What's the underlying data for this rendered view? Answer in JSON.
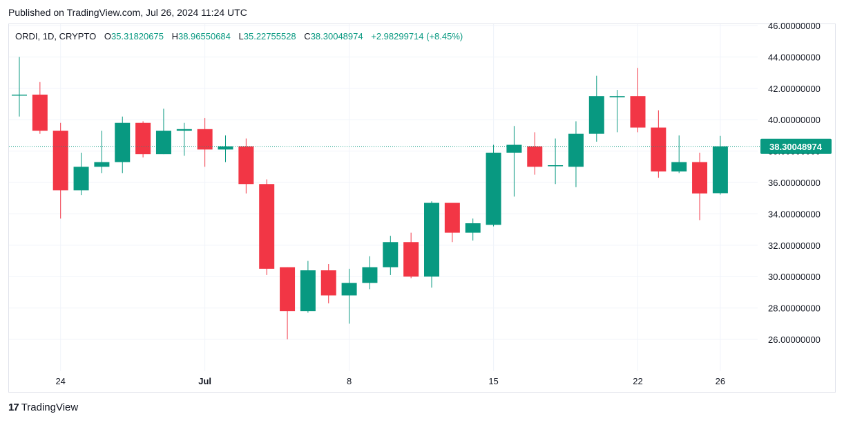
{
  "header": {
    "published": "Published on TradingView.com, Jul 26, 2024 11:24 UTC"
  },
  "legend": {
    "symbol": "ORDI, 1D, CRYPTO",
    "open_key": "O",
    "open": "35.31820675",
    "high_key": "H",
    "high": "38.96550684",
    "low_key": "L",
    "low": "35.22755528",
    "close_key": "C",
    "close": "38.30048974",
    "change": "+2.98299714 (+8.45%)"
  },
  "footer": {
    "brand": "TradingView",
    "logo": "17"
  },
  "colors": {
    "up": "#089981",
    "down": "#f23645",
    "grid": "#f0f3fa",
    "text": "#131722"
  },
  "chart_data": {
    "type": "candlestick",
    "title": "ORDI, 1D, CRYPTO",
    "ylim": [
      24.5,
      46.0
    ],
    "yticks": [
      26,
      28,
      30,
      32,
      34,
      36,
      38,
      40,
      42,
      44,
      46
    ],
    "ytick_labels": [
      "26.00000000",
      "28.00000000",
      "30.00000000",
      "32.00000000",
      "34.00000000",
      "36.00000000",
      "38.00000000",
      "40.00000000",
      "42.00000000",
      "44.00000000",
      "46.00000000"
    ],
    "xticks": [
      {
        "label": "24",
        "index": 2
      },
      {
        "label": "Jul",
        "index": 9
      },
      {
        "label": "8",
        "index": 16
      },
      {
        "label": "15",
        "index": 23
      },
      {
        "label": "22",
        "index": 30
      },
      {
        "label": "26",
        "index": 34
      }
    ],
    "last_price": 38.30048974,
    "last_price_label": "38.30048974",
    "candles": [
      {
        "o": 41.6,
        "h": 44.0,
        "l": 40.2,
        "c": 41.6
      },
      {
        "o": 41.6,
        "h": 42.4,
        "l": 39.1,
        "c": 39.3
      },
      {
        "o": 39.3,
        "h": 39.8,
        "l": 33.7,
        "c": 35.5
      },
      {
        "o": 35.5,
        "h": 37.9,
        "l": 35.2,
        "c": 37.0
      },
      {
        "o": 37.0,
        "h": 39.3,
        "l": 36.6,
        "c": 37.3
      },
      {
        "o": 37.3,
        "h": 40.2,
        "l": 36.6,
        "c": 39.8
      },
      {
        "o": 39.8,
        "h": 39.9,
        "l": 37.6,
        "c": 37.8
      },
      {
        "o": 37.8,
        "h": 40.7,
        "l": 37.8,
        "c": 39.3
      },
      {
        "o": 39.3,
        "h": 39.8,
        "l": 37.7,
        "c": 39.4
      },
      {
        "o": 39.4,
        "h": 40.1,
        "l": 37.0,
        "c": 38.1
      },
      {
        "o": 38.1,
        "h": 39.0,
        "l": 37.3,
        "c": 38.3
      },
      {
        "o": 38.3,
        "h": 38.8,
        "l": 35.3,
        "c": 35.9
      },
      {
        "o": 35.9,
        "h": 36.2,
        "l": 30.1,
        "c": 30.5
      },
      {
        "o": 30.6,
        "h": 30.6,
        "l": 26.0,
        "c": 27.8
      },
      {
        "o": 27.8,
        "h": 31.0,
        "l": 27.7,
        "c": 30.4
      },
      {
        "o": 30.4,
        "h": 30.8,
        "l": 28.3,
        "c": 28.8
      },
      {
        "o": 28.8,
        "h": 30.5,
        "l": 27.0,
        "c": 29.6
      },
      {
        "o": 29.6,
        "h": 31.3,
        "l": 29.2,
        "c": 30.6
      },
      {
        "o": 30.6,
        "h": 32.6,
        "l": 30.1,
        "c": 32.2
      },
      {
        "o": 32.2,
        "h": 32.8,
        "l": 29.9,
        "c": 30.0
      },
      {
        "o": 30.0,
        "h": 34.8,
        "l": 29.3,
        "c": 34.7
      },
      {
        "o": 34.7,
        "h": 34.7,
        "l": 32.2,
        "c": 32.8
      },
      {
        "o": 32.8,
        "h": 33.7,
        "l": 32.3,
        "c": 33.4
      },
      {
        "o": 33.3,
        "h": 38.4,
        "l": 33.2,
        "c": 37.9
      },
      {
        "o": 37.9,
        "h": 39.6,
        "l": 35.1,
        "c": 38.4
      },
      {
        "o": 38.3,
        "h": 39.2,
        "l": 36.5,
        "c": 37.0
      },
      {
        "o": 37.1,
        "h": 38.8,
        "l": 35.9,
        "c": 37.1
      },
      {
        "o": 37.0,
        "h": 39.9,
        "l": 35.7,
        "c": 39.1
      },
      {
        "o": 39.1,
        "h": 42.8,
        "l": 38.6,
        "c": 41.5
      },
      {
        "o": 41.5,
        "h": 41.9,
        "l": 39.2,
        "c": 41.5
      },
      {
        "o": 41.5,
        "h": 43.3,
        "l": 39.2,
        "c": 39.5
      },
      {
        "o": 39.5,
        "h": 40.6,
        "l": 36.3,
        "c": 36.7
      },
      {
        "o": 36.7,
        "h": 39.0,
        "l": 36.6,
        "c": 37.3
      },
      {
        "o": 37.3,
        "h": 37.9,
        "l": 33.6,
        "c": 35.3
      },
      {
        "o": 35.31820675,
        "h": 38.96550684,
        "l": 35.22755528,
        "c": 38.30048974
      }
    ]
  }
}
